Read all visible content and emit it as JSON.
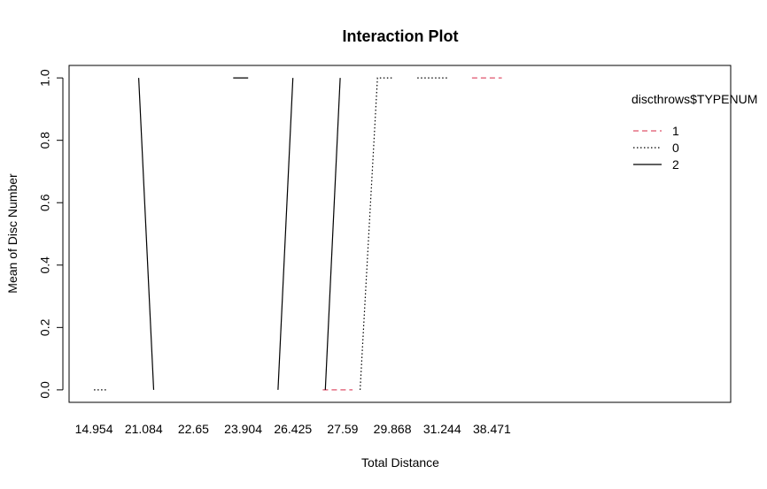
{
  "chart_data": {
    "type": "line",
    "title": "Interaction Plot",
    "xlabel": "Total Distance",
    "ylabel": "Mean of Disc Number",
    "categories": [
      "14.954",
      "21.084",
      "22.65",
      "23.904",
      "26.425",
      "27.59",
      "29.868",
      "31.244",
      "38.471"
    ],
    "x_positions": [
      1,
      2,
      3,
      4,
      5,
      6,
      7,
      8,
      9
    ],
    "xlim": [
      0.5,
      13.8
    ],
    "ylim": [
      -0.04,
      1.04
    ],
    "yticks": [
      0.0,
      0.2,
      0.4,
      0.6,
      0.8,
      1.0
    ],
    "ytick_labels": [
      "0.0",
      "0.2",
      "0.4",
      "0.6",
      "0.8",
      "1.0"
    ],
    "grid": false,
    "legend": {
      "title": "discthrows$TYPENUM",
      "placement": "top-right",
      "entries": [
        {
          "label": "1",
          "color": "#DF536B",
          "dash": "dashed"
        },
        {
          "label": "0",
          "color": "#000000",
          "dash": "dotted"
        },
        {
          "label": "2",
          "color": "#000000",
          "dash": "solid"
        }
      ]
    },
    "series": [
      {
        "name": "1",
        "color": "#DF536B",
        "dash": "dashed",
        "segments": [
          [
            [
              5.6,
              0.0
            ],
            [
              6.2,
              0.0
            ]
          ],
          [
            [
              8.6,
              1.0
            ],
            [
              9.2,
              1.0
            ]
          ]
        ]
      },
      {
        "name": "0",
        "color": "#000000",
        "dash": "dotted",
        "segments": [
          [
            [
              1.0,
              0.0
            ],
            [
              1.25,
              0.0
            ]
          ],
          [
            [
              6.35,
              0.0
            ],
            [
              6.7,
              1.0
            ],
            [
              7.0,
              1.0
            ]
          ],
          [
            [
              7.5,
              1.0
            ],
            [
              8.1,
              1.0
            ]
          ]
        ]
      },
      {
        "name": "2",
        "color": "#000000",
        "dash": "solid",
        "segments": [
          [
            [
              1.9,
              1.0
            ],
            [
              2.2,
              0.0
            ]
          ],
          [
            [
              3.8,
              1.0
            ],
            [
              4.1,
              1.0
            ]
          ],
          [
            [
              4.7,
              0.0
            ],
            [
              5.0,
              1.0
            ]
          ],
          [
            [
              5.65,
              0.0
            ],
            [
              5.95,
              1.0
            ]
          ]
        ]
      }
    ]
  }
}
